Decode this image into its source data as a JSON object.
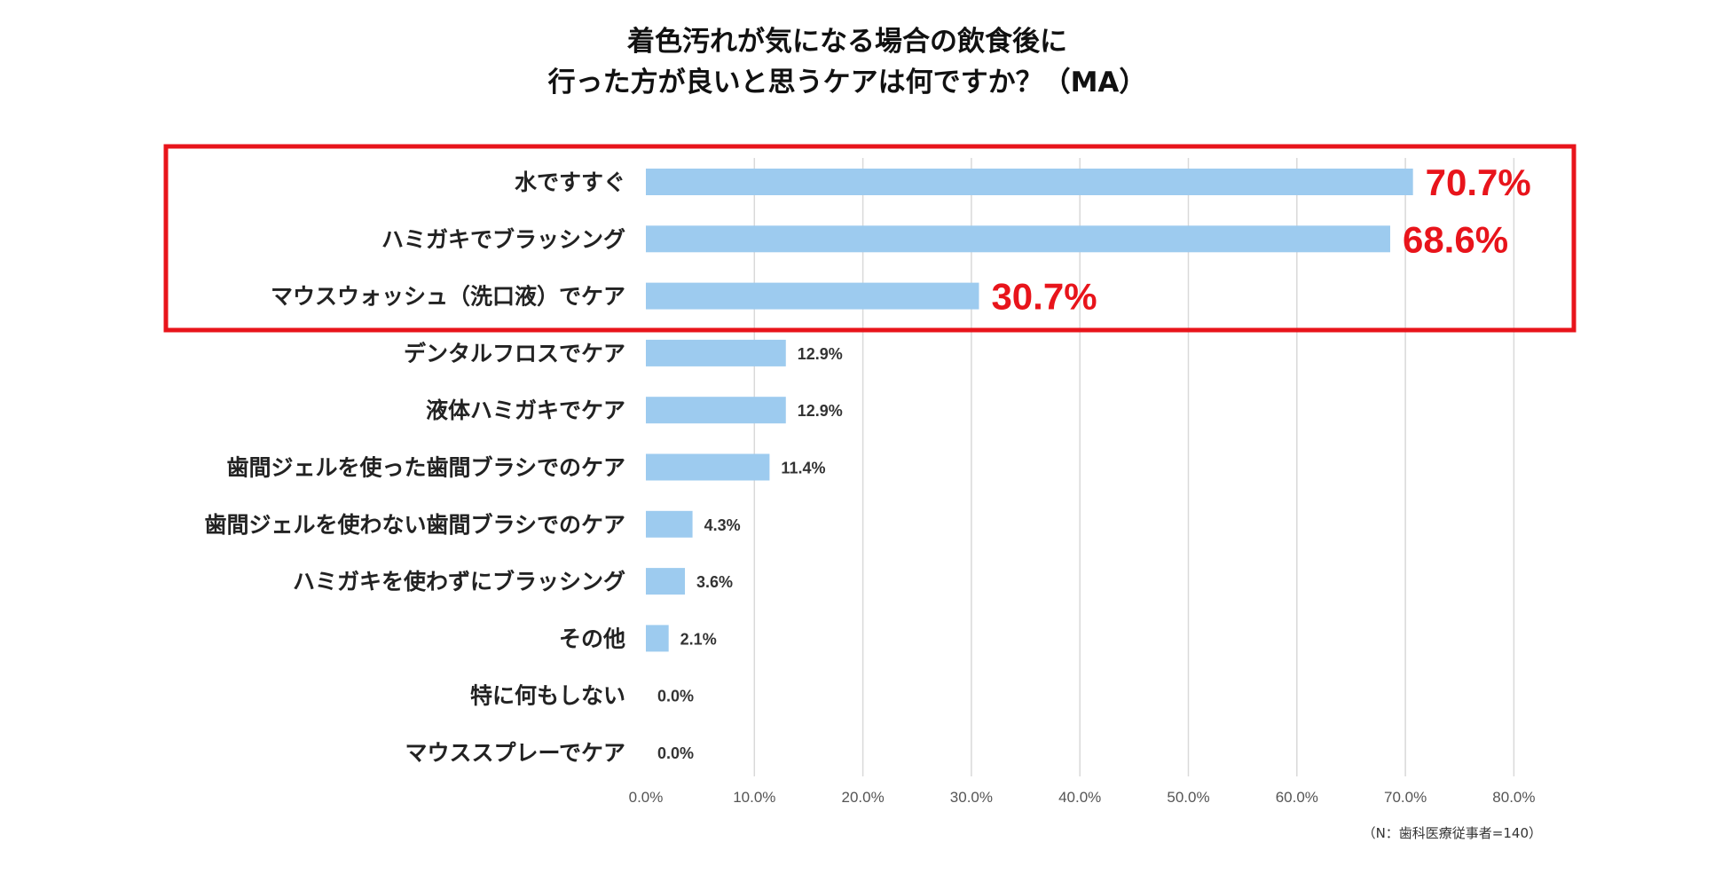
{
  "chart_data": {
    "type": "bar",
    "orientation": "horizontal",
    "title_lines": [
      "着色汚れが気になる場合の飲食後に",
      "行った方が良いと思うケアは何ですか？（MA）"
    ],
    "categories": [
      "水ですすぐ",
      "ハミガキでブラッシング",
      "マウスウォッシュ（洗口液）でケア",
      "デンタルフロスでケア",
      "液体ハミガキでケア",
      "歯間ジェルを使った歯間ブラシでのケア",
      "歯間ジェルを使わない歯間ブラシでのケア",
      "ハミガキを使わずにブラッシング",
      "その他",
      "特に何もしない",
      "マウススプレーでケア"
    ],
    "values": [
      70.7,
      68.6,
      30.7,
      12.9,
      12.9,
      11.4,
      4.3,
      3.6,
      2.1,
      0.0,
      0.0
    ],
    "value_labels": [
      "70.7%",
      "68.6%",
      "30.7%",
      "12.9%",
      "12.9%",
      "11.4%",
      "4.3%",
      "3.6%",
      "2.1%",
      "0.0%",
      "0.0%"
    ],
    "highlight_top_n": 3,
    "xlim": [
      0,
      80
    ],
    "x_ticks": [
      0,
      10,
      20,
      30,
      40,
      50,
      60,
      70,
      80
    ],
    "x_tick_labels": [
      "0.0%",
      "10.0%",
      "20.0%",
      "30.0%",
      "40.0%",
      "50.0%",
      "60.0%",
      "70.0%",
      "80.0%"
    ],
    "grid": true,
    "note": "（N：歯科医療従事者=140）"
  },
  "colors": {
    "bar": "#9dcbef",
    "highlight_label": "#e8141b",
    "highlight_box": "#e8141b",
    "grid": "#d9d9d9"
  }
}
